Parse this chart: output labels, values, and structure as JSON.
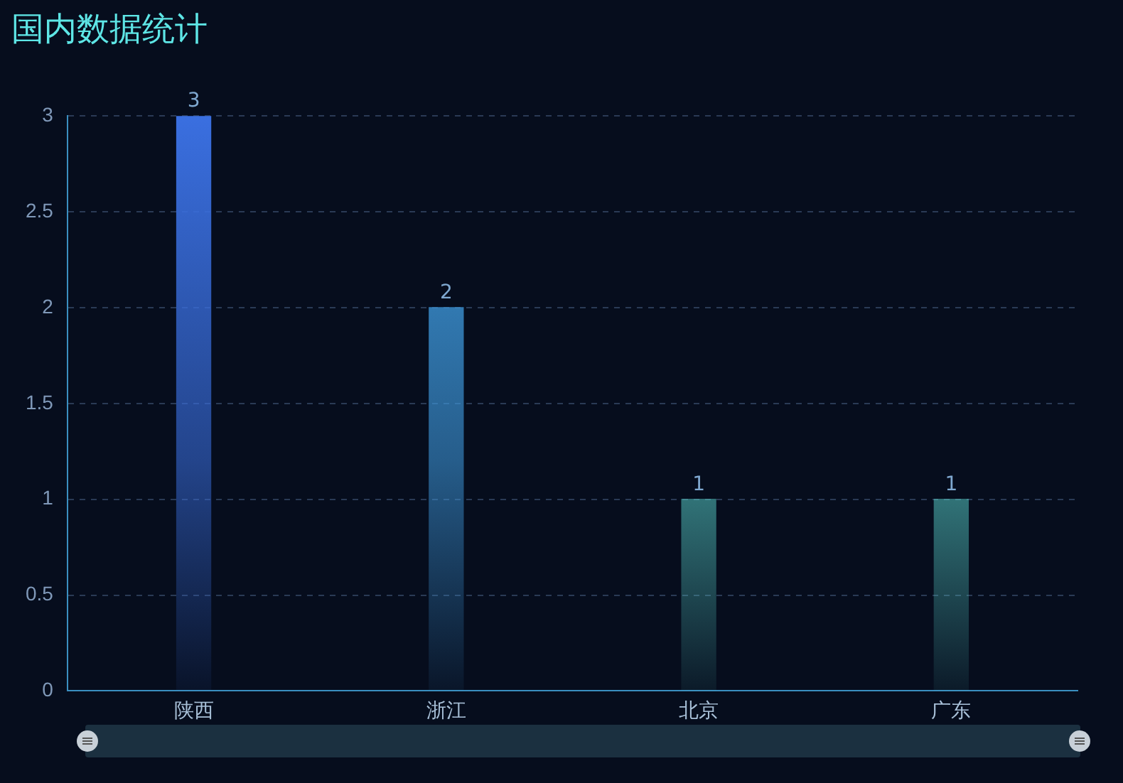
{
  "chart_data": {
    "type": "bar",
    "title": "国内数据统计",
    "categories": [
      "陕西",
      "浙江",
      "北京",
      "广东"
    ],
    "values": [
      3,
      2,
      1,
      1
    ],
    "colors": [
      "#3a6fe0",
      "#3f9be0",
      "#5fe0d8",
      "#5fe0d8"
    ],
    "ylim": [
      0,
      3
    ],
    "yticks": [
      0,
      0.5,
      1,
      1.5,
      2,
      2.5,
      3
    ],
    "grid": "y",
    "legend": false,
    "data_labels": true
  }
}
